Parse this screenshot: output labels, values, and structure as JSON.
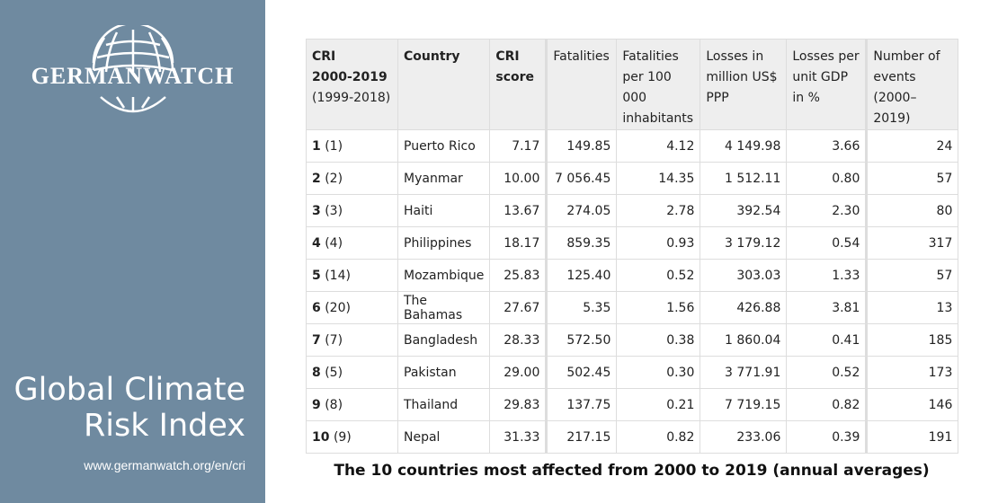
{
  "sidebar": {
    "logo_text": "GERMANWATCH",
    "title_line1": "Global Climate",
    "title_line2": "Risk Index",
    "url": "www.germanwatch.org/en/cri"
  },
  "table": {
    "headers": {
      "rank": "CRI",
      "rank2": "2000-2019",
      "rank3": "(1999-2018)",
      "country": "Country",
      "score1": "CRI",
      "score2": "score",
      "fatalities": "Fatalities",
      "fpc1": "Fatalities",
      "fpc2": "per 100 000",
      "fpc3": "inhabitants",
      "loss1": "Losses in",
      "loss2": "million US$",
      "loss3": "PPP",
      "gdp1": "Losses per",
      "gdp2": "unit GDP",
      "gdp3": "in %",
      "ev1": "Number of",
      "ev2": "events",
      "ev3": "(2000–2019)"
    },
    "rows": [
      {
        "rank": "1",
        "prev": "(1)",
        "country": "Puerto Rico",
        "score": "7.17",
        "fatalities": "149.85",
        "fpc": "4.12",
        "losses": "4 149.98",
        "gdp": "3.66",
        "events": "24"
      },
      {
        "rank": "2",
        "prev": "(2)",
        "country": "Myanmar",
        "score": "10.00",
        "fatalities": "7 056.45",
        "fpc": "14.35",
        "losses": "1 512.11",
        "gdp": "0.80",
        "events": "57"
      },
      {
        "rank": "3",
        "prev": "(3)",
        "country": "Haiti",
        "score": "13.67",
        "fatalities": "274.05",
        "fpc": "2.78",
        "losses": "392.54",
        "gdp": "2.30",
        "events": "80"
      },
      {
        "rank": "4",
        "prev": "(4)",
        "country": "Philippines",
        "score": "18.17",
        "fatalities": "859.35",
        "fpc": "0.93",
        "losses": "3 179.12",
        "gdp": "0.54",
        "events": "317"
      },
      {
        "rank": "5",
        "prev": "(14)",
        "country": "Mozambique",
        "score": "25.83",
        "fatalities": "125.40",
        "fpc": "0.52",
        "losses": "303.03",
        "gdp": "1.33",
        "events": "57"
      },
      {
        "rank": "6",
        "prev": "(20)",
        "country": "The Bahamas",
        "score": "27.67",
        "fatalities": "5.35",
        "fpc": "1.56",
        "losses": "426.88",
        "gdp": "3.81",
        "events": "13"
      },
      {
        "rank": "7",
        "prev": "(7)",
        "country": "Bangladesh",
        "score": "28.33",
        "fatalities": "572.50",
        "fpc": "0.38",
        "losses": "1 860.04",
        "gdp": "0.41",
        "events": "185"
      },
      {
        "rank": "8",
        "prev": "(5)",
        "country": "Pakistan",
        "score": "29.00",
        "fatalities": "502.45",
        "fpc": "0.30",
        "losses": "3 771.91",
        "gdp": "0.52",
        "events": "173"
      },
      {
        "rank": "9",
        "prev": "(8)",
        "country": "Thailand",
        "score": "29.83",
        "fatalities": "137.75",
        "fpc": "0.21",
        "losses": "7 719.15",
        "gdp": "0.82",
        "events": "146"
      },
      {
        "rank": "10",
        "prev": "(9)",
        "country": "Nepal",
        "score": "31.33",
        "fatalities": "217.15",
        "fpc": "0.82",
        "losses": "233.06",
        "gdp": "0.39",
        "events": "191"
      }
    ]
  },
  "caption": "The 10 countries most affected from 2000 to 2019 (annual averages)"
}
